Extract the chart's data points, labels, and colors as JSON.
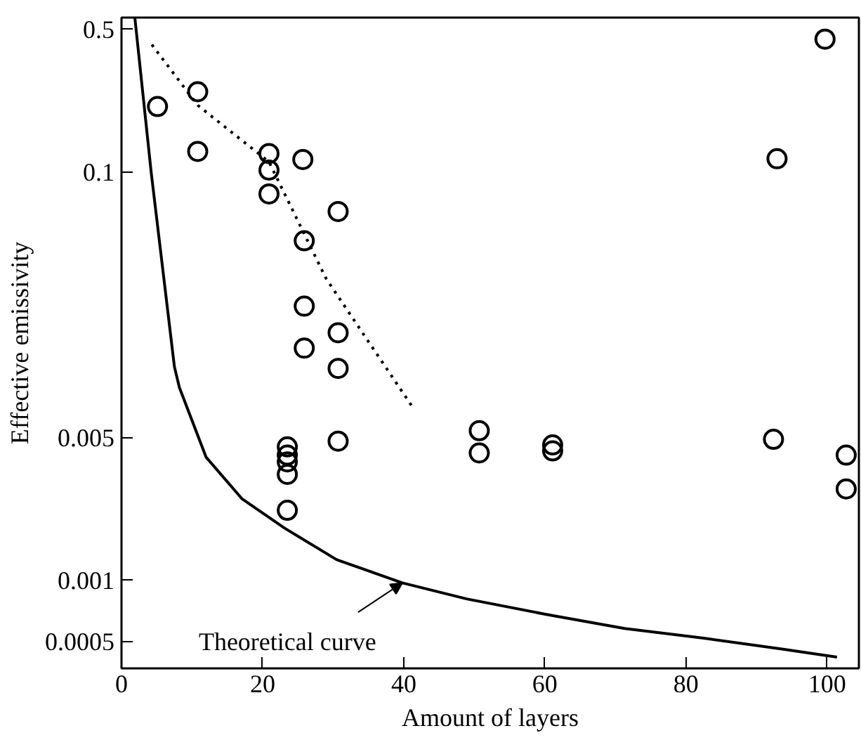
{
  "chart_data": {
    "type": "scatter",
    "xlabel": "Amount of layers",
    "ylabel": "Effective emissivity",
    "log": "y",
    "grid": false,
    "xlim": [
      0,
      104.5
    ],
    "xticks": [
      0,
      20,
      40,
      60,
      80,
      100
    ],
    "ylim": [
      0.00037,
      0.57
    ],
    "yticks": [
      0.5,
      0.1,
      0.005,
      0.001,
      0.0005
    ],
    "series": [
      {
        "type": "scatter",
        "marker": "circle",
        "color": "#000000",
        "x": [
          5.1,
          10.8,
          10.8,
          20.9,
          20.9,
          20.9,
          23.5,
          23.5,
          23.5,
          23.5,
          23.5,
          25.7,
          25.9,
          25.9,
          25.9,
          30.7,
          30.7,
          30.7,
          30.7,
          50.7,
          50.7,
          61.1,
          61.1,
          92.4,
          92.9,
          99.7,
          102.7,
          102.7
        ],
        "values": [
          0.209,
          0.247,
          0.126,
          0.123,
          0.102,
          0.078,
          0.0045,
          0.0041,
          0.0038,
          0.0033,
          0.0022,
          0.115,
          0.046,
          0.022,
          0.0137,
          0.064,
          0.0163,
          0.0109,
          0.0048,
          0.0054,
          0.0042,
          0.0046,
          0.0043,
          0.0049,
          0.116,
          0.447,
          0.0041,
          0.0028
        ]
      },
      {
        "type": "line",
        "line_style": "dotted",
        "color": "#000000",
        "x": [
          4.3,
          10.8,
          20.9,
          29.0,
          41.3
        ],
        "values": [
          0.42,
          0.212,
          0.112,
          0.03,
          0.007
        ]
      },
      {
        "type": "line",
        "line_style": "solid",
        "color": "#000000",
        "x": [
          1.9,
          4.2,
          7.5,
          8.2,
          12.0,
          17.1,
          23.1,
          30.5,
          39.8,
          48.9,
          60.2,
          71.3,
          82.5,
          93.6,
          101.4
        ],
        "values": [
          0.566,
          0.1,
          0.0111,
          0.0088,
          0.004,
          0.0025,
          0.0018,
          0.00126,
          0.00097,
          0.00081,
          0.00068,
          0.00058,
          0.00052,
          0.00046,
          0.00042
        ]
      }
    ],
    "annotations": [
      {
        "text": "Theoretical curve",
        "x": 39.8,
        "y": 0.00097
      }
    ]
  }
}
